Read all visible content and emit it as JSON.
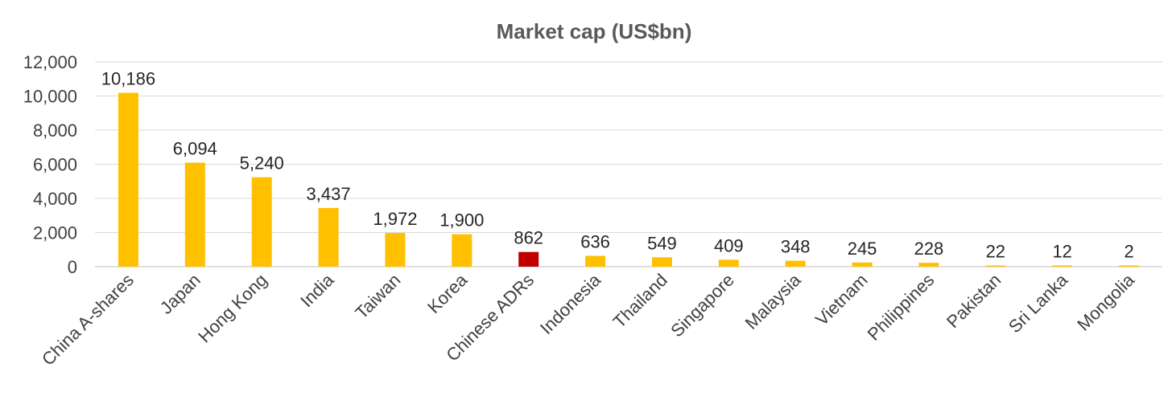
{
  "chart_data": {
    "type": "bar",
    "title": "Market cap (US$bn)",
    "xlabel": "",
    "ylabel": "",
    "ylim": [
      0,
      12000
    ],
    "y_ticks": [
      0,
      2000,
      4000,
      6000,
      8000,
      10000,
      12000
    ],
    "y_tick_labels": [
      "0",
      "2,000",
      "4,000",
      "6,000",
      "8,000",
      "10,000",
      "12,000"
    ],
    "grid": true,
    "legend": "none",
    "categories": [
      "China A-shares",
      "Japan",
      "Hong Kong",
      "India",
      "Taiwan",
      "Korea",
      "Chinese ADRs",
      "Indonesia",
      "Thailand",
      "Singapore",
      "Malaysia",
      "Vietnam",
      "Philippines",
      "Pakistan",
      "Sri Lanka",
      "Mongolia"
    ],
    "values": [
      10186,
      6094,
      5240,
      3437,
      1972,
      1900,
      862,
      636,
      549,
      409,
      348,
      245,
      228,
      22,
      12,
      2
    ],
    "data_labels": [
      "10,186",
      "6,094",
      "5,240",
      "3,437",
      "1,972",
      "1,900",
      "862",
      "636",
      "549",
      "409",
      "348",
      "245",
      "228",
      "22",
      "12",
      "2"
    ],
    "colors": {
      "bar": "#FFC000",
      "highlight": "#C00000",
      "grid": "#D9D9D9",
      "text": "#404040"
    },
    "highlight_category": "Chinese ADRs"
  }
}
